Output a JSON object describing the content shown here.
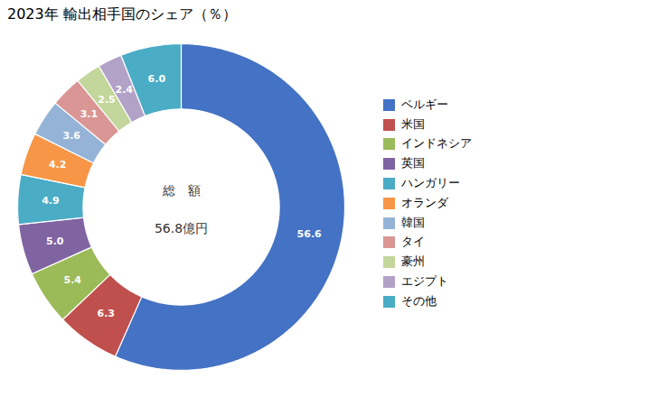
{
  "chart_data": {
    "type": "donut",
    "title": "2023年 輸出相手国のシェア（％）",
    "categories": [
      "ベルギー",
      "米国",
      "インドネシア",
      "英国",
      "ハンガリー",
      "オランダ",
      "韓国",
      "タイ",
      "豪州",
      "エジプト",
      "その他"
    ],
    "values": [
      56.6,
      6.3,
      5.4,
      5.0,
      4.9,
      4.2,
      3.6,
      3.1,
      2.5,
      2.4,
      6.0
    ],
    "value_labels": [
      "56.6",
      "6.3",
      "5.4",
      "5.0",
      "4.9",
      "4.2",
      "3.6",
      "3.1",
      "2.5",
      "2.4",
      "6.0"
    ],
    "colors": [
      "#4472C4",
      "#C0504D",
      "#9BBB59",
      "#8064A2",
      "#4BACC6",
      "#F79646",
      "#95B3D7",
      "#D99694",
      "#C3D69B",
      "#B2A2C7",
      "#4AACC5"
    ],
    "annotations": [
      "総　額",
      "56.8億円"
    ],
    "data_labels": true,
    "legend": "right"
  }
}
